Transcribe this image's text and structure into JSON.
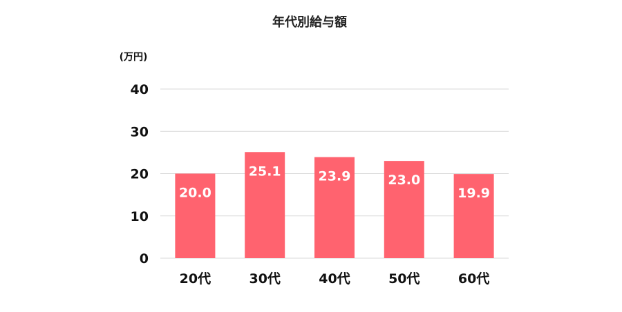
{
  "chart_data": {
    "type": "bar",
    "title": "年代別給与額",
    "ylabel": "(万円)",
    "xlabel": "",
    "categories": [
      "20代",
      "30代",
      "40代",
      "50代",
      "60代"
    ],
    "values": [
      20.0,
      25.1,
      23.9,
      23.0,
      19.9
    ],
    "data_labels": [
      "20.0",
      "25.1",
      "23.9",
      "23.0",
      "19.9"
    ],
    "yticks": [
      0,
      10,
      20,
      30,
      40
    ],
    "ylim": [
      0,
      40
    ],
    "grid": true,
    "legend": "none",
    "colors": {
      "bar": "#ff636f",
      "grid": "#d9d9d9",
      "text": "#111111"
    }
  }
}
